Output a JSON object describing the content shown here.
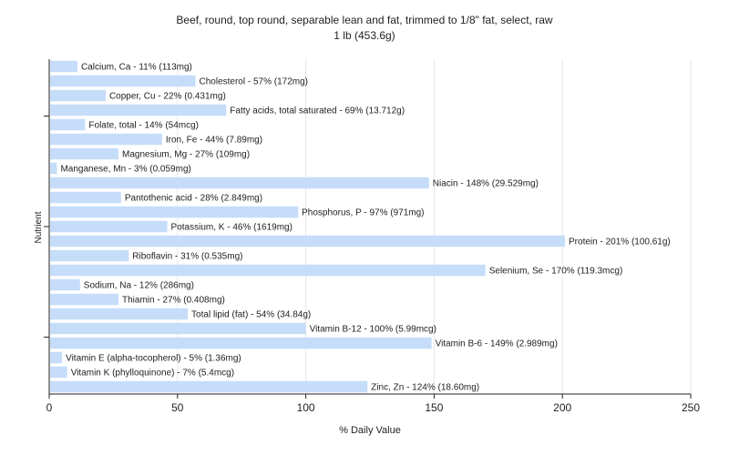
{
  "chart_data": {
    "type": "bar",
    "orientation": "horizontal",
    "title": "Beef, round, top round, separable lean and fat, trimmed to 1/8\" fat, select, raw",
    "subtitle": "1 lb (453.6g)",
    "xlabel": "% Daily Value",
    "ylabel": "Nutrient",
    "xlim": [
      0,
      250
    ],
    "xticks": [
      0,
      50,
      100,
      150,
      200,
      250
    ],
    "grid": true,
    "bar_color": "#c6ddfa",
    "categories": [
      "Calcium, Ca",
      "Cholesterol",
      "Copper, Cu",
      "Fatty acids, total saturated",
      "Folate, total",
      "Iron, Fe",
      "Magnesium, Mg",
      "Manganese, Mn",
      "Niacin",
      "Pantothenic acid",
      "Phosphorus, P",
      "Potassium, K",
      "Protein",
      "Riboflavin",
      "Selenium, Se",
      "Sodium, Na",
      "Thiamin",
      "Total lipid (fat)",
      "Vitamin B-12",
      "Vitamin B-6",
      "Vitamin E (alpha-tocopherol)",
      "Vitamin K (phylloquinone)",
      "Zinc, Zn"
    ],
    "values": [
      11,
      57,
      22,
      69,
      14,
      44,
      27,
      3,
      148,
      28,
      97,
      46,
      201,
      31,
      170,
      12,
      27,
      54,
      100,
      149,
      5,
      7,
      124
    ],
    "labels": [
      "Calcium, Ca - 11% (113mg)",
      "Cholesterol - 57% (172mg)",
      "Copper, Cu - 22% (0.431mg)",
      "Fatty acids, total saturated - 69% (13.712g)",
      "Folate, total - 14% (54mcg)",
      "Iron, Fe - 44% (7.89mg)",
      "Magnesium, Mg - 27% (109mg)",
      "Manganese, Mn - 3% (0.059mg)",
      "Niacin - 148% (29.529mg)",
      "Pantothenic acid - 28% (2.849mg)",
      "Phosphorus, P - 97% (971mg)",
      "Potassium, K - 46% (1619mg)",
      "Protein - 201% (100.61g)",
      "Riboflavin - 31% (0.535mg)",
      "Selenium, Se - 170% (119.3mcg)",
      "Sodium, Na - 12% (286mg)",
      "Thiamin - 27% (0.408mg)",
      "Total lipid (fat) - 54% (34.84g)",
      "Vitamin B-12 - 100% (5.99mcg)",
      "Vitamin B-6 - 149% (2.989mg)",
      "Vitamin E (alpha-tocopherol) - 5% (1.36mg)",
      "Vitamin K (phylloquinone) - 7% (5.4mcg)",
      "Zinc, Zn - 124% (18.60mg)"
    ]
  }
}
